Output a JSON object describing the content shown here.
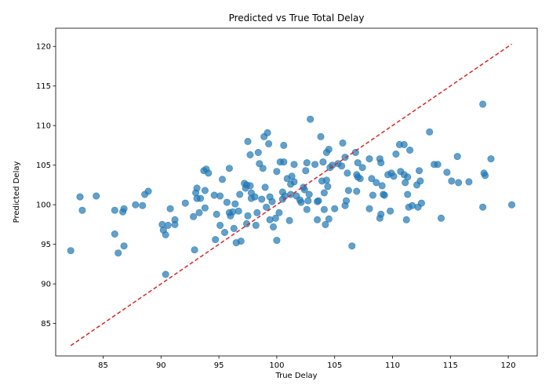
{
  "chart_data": {
    "type": "scatter",
    "title": "Predicted vs True Total Delay",
    "xlabel": "True Delay",
    "ylabel": "Predicted Delay",
    "xlim": [
      80.9,
      122.5
    ],
    "ylim": [
      80.9,
      122.3
    ],
    "xticks": [
      85,
      90,
      95,
      100,
      105,
      110,
      115,
      120
    ],
    "yticks": [
      85,
      90,
      95,
      100,
      105,
      110,
      115,
      120
    ],
    "grid": false,
    "point_color": "#1f77b4",
    "reference_line": {
      "from": [
        82.2,
        82.2
      ],
      "to": [
        120.3,
        120.3
      ],
      "color": "#d62728",
      "style": "dashed"
    },
    "series": [
      {
        "points": [
          [
            82.2,
            94.2
          ],
          [
            83.0,
            101.0
          ],
          [
            83.2,
            99.3
          ],
          [
            84.4,
            101.1
          ],
          [
            86.0,
            96.3
          ],
          [
            86.0,
            99.3
          ],
          [
            86.3,
            93.9
          ],
          [
            86.7,
            99.1
          ],
          [
            86.8,
            99.5
          ],
          [
            86.8,
            94.8
          ],
          [
            87.8,
            100.0
          ],
          [
            88.4,
            99.9
          ],
          [
            88.6,
            101.3
          ],
          [
            88.9,
            101.7
          ],
          [
            90.1,
            97.5
          ],
          [
            90.2,
            96.8
          ],
          [
            90.4,
            96.2
          ],
          [
            90.4,
            91.2
          ],
          [
            90.6,
            97.4
          ],
          [
            90.8,
            99.5
          ],
          [
            91.2,
            98.1
          ],
          [
            91.2,
            97.5
          ],
          [
            92.1,
            100.2
          ],
          [
            92.8,
            98.5
          ],
          [
            92.9,
            94.3
          ],
          [
            93.0,
            101.5
          ],
          [
            93.1,
            100.8
          ],
          [
            93.1,
            102.1
          ],
          [
            93.3,
            99.0
          ],
          [
            93.4,
            100.8
          ],
          [
            93.7,
            104.3
          ],
          [
            93.8,
            101.8
          ],
          [
            93.8,
            99.6
          ],
          [
            93.9,
            104.5
          ],
          [
            94.1,
            104.0
          ],
          [
            94.6,
            101.2
          ],
          [
            94.7,
            95.6
          ],
          [
            94.8,
            98.8
          ],
          [
            95.1,
            101.1
          ],
          [
            95.1,
            97.4
          ],
          [
            95.3,
            103.2
          ],
          [
            95.5,
            96.5
          ],
          [
            95.7,
            100.3
          ],
          [
            95.9,
            99.0
          ],
          [
            95.9,
            104.6
          ],
          [
            96.0,
            98.6
          ],
          [
            96.2,
            99.1
          ],
          [
            96.3,
            97.0
          ],
          [
            96.4,
            100.1
          ],
          [
            96.5,
            95.2
          ],
          [
            96.7,
            99.2
          ],
          [
            96.8,
            101.3
          ],
          [
            96.9,
            95.4
          ],
          [
            97.2,
            102.7
          ],
          [
            97.3,
            102.1
          ],
          [
            97.4,
            97.6
          ],
          [
            97.4,
            102.5
          ],
          [
            97.5,
            108.0
          ],
          [
            97.5,
            98.6
          ],
          [
            97.7,
            106.3
          ],
          [
            97.7,
            102.4
          ],
          [
            97.8,
            100.8
          ],
          [
            97.8,
            101.5
          ],
          [
            98.1,
            101.0
          ],
          [
            98.2,
            97.4
          ],
          [
            98.3,
            99.0
          ],
          [
            98.4,
            106.6
          ],
          [
            98.5,
            105.2
          ],
          [
            98.7,
            100.7
          ],
          [
            98.8,
            104.6
          ],
          [
            98.9,
            108.6
          ],
          [
            99.0,
            102.2
          ],
          [
            99.1,
            99.7
          ],
          [
            99.2,
            109.1
          ],
          [
            99.3,
            107.7
          ],
          [
            99.4,
            101.0
          ],
          [
            99.4,
            98.1
          ],
          [
            99.6,
            100.4
          ],
          [
            99.7,
            97.2
          ],
          [
            99.9,
            98.3
          ],
          [
            100.0,
            104.2
          ],
          [
            100.0,
            95.5
          ],
          [
            100.2,
            99.0
          ],
          [
            100.3,
            105.4
          ],
          [
            100.5,
            101.6
          ],
          [
            100.5,
            100.7
          ],
          [
            100.6,
            107.5
          ],
          [
            100.6,
            105.4
          ],
          [
            100.7,
            101.1
          ],
          [
            100.9,
            103.3
          ],
          [
            101.1,
            98.0
          ],
          [
            101.2,
            102.6
          ],
          [
            101.2,
            101.3
          ],
          [
            101.3,
            103.6
          ],
          [
            101.5,
            102.9
          ],
          [
            101.5,
            105.1
          ],
          [
            101.7,
            101.1
          ],
          [
            102.0,
            100.6
          ],
          [
            102.1,
            100.3
          ],
          [
            102.3,
            102.2
          ],
          [
            102.4,
            101.9
          ],
          [
            102.5,
            104.3
          ],
          [
            102.6,
            105.3
          ],
          [
            102.6,
            99.4
          ],
          [
            102.7,
            100.5
          ],
          [
            102.8,
            101.3
          ],
          [
            102.9,
            110.8
          ],
          [
            103.3,
            105.1
          ],
          [
            103.5,
            100.4
          ],
          [
            103.5,
            98.1
          ],
          [
            103.6,
            100.5
          ],
          [
            103.8,
            108.6
          ],
          [
            103.9,
            103.0
          ],
          [
            104.0,
            105.4
          ],
          [
            104.1,
            101.5
          ],
          [
            104.1,
            99.4
          ],
          [
            104.2,
            97.5
          ],
          [
            104.3,
            103.1
          ],
          [
            104.3,
            106.6
          ],
          [
            104.4,
            102.3
          ],
          [
            104.5,
            98.2
          ],
          [
            104.5,
            107.0
          ],
          [
            104.6,
            104.7
          ],
          [
            104.8,
            105.0
          ],
          [
            105.0,
            99.5
          ],
          [
            105.3,
            105.2
          ],
          [
            105.6,
            104.9
          ],
          [
            105.7,
            107.8
          ],
          [
            105.9,
            99.9
          ],
          [
            105.9,
            106.0
          ],
          [
            106.0,
            100.5
          ],
          [
            106.1,
            104.0
          ],
          [
            106.2,
            101.8
          ],
          [
            106.5,
            94.8
          ],
          [
            106.8,
            106.6
          ],
          [
            106.9,
            103.8
          ],
          [
            106.9,
            101.7
          ],
          [
            107.0,
            103.5
          ],
          [
            107.0,
            105.3
          ],
          [
            107.2,
            103.3
          ],
          [
            107.4,
            104.7
          ],
          [
            108.0,
            99.5
          ],
          [
            108.0,
            105.8
          ],
          [
            108.2,
            103.3
          ],
          [
            108.3,
            101.2
          ],
          [
            108.6,
            102.8
          ],
          [
            108.9,
            98.3
          ],
          [
            108.9,
            105.8
          ],
          [
            109.0,
            105.3
          ],
          [
            109.0,
            98.8
          ],
          [
            109.1,
            102.4
          ],
          [
            109.2,
            101.3
          ],
          [
            109.3,
            101.2
          ],
          [
            109.6,
            103.8
          ],
          [
            109.8,
            99.2
          ],
          [
            109.9,
            104.0
          ],
          [
            110.1,
            103.6
          ],
          [
            110.3,
            106.4
          ],
          [
            110.6,
            107.6
          ],
          [
            110.7,
            104.2
          ],
          [
            111.0,
            107.6
          ],
          [
            111.0,
            103.8
          ],
          [
            111.1,
            102.8
          ],
          [
            111.2,
            98.1
          ],
          [
            111.3,
            101.3
          ],
          [
            111.3,
            103.5
          ],
          [
            111.4,
            99.7
          ],
          [
            111.5,
            106.9
          ],
          [
            111.7,
            99.9
          ],
          [
            112.1,
            102.5
          ],
          [
            112.2,
            99.7
          ],
          [
            112.3,
            104.3
          ],
          [
            112.4,
            103.0
          ],
          [
            112.5,
            100.2
          ],
          [
            113.2,
            109.2
          ],
          [
            113.6,
            105.1
          ],
          [
            113.9,
            105.1
          ],
          [
            114.2,
            98.3
          ],
          [
            114.7,
            104.1
          ],
          [
            115.1,
            103.0
          ],
          [
            115.6,
            106.1
          ],
          [
            115.7,
            102.8
          ],
          [
            116.6,
            102.9
          ],
          [
            117.8,
            112.7
          ],
          [
            117.8,
            99.7
          ],
          [
            117.9,
            104.0
          ],
          [
            118.0,
            103.7
          ],
          [
            118.5,
            105.8
          ],
          [
            120.3,
            100.0
          ]
        ]
      }
    ]
  }
}
